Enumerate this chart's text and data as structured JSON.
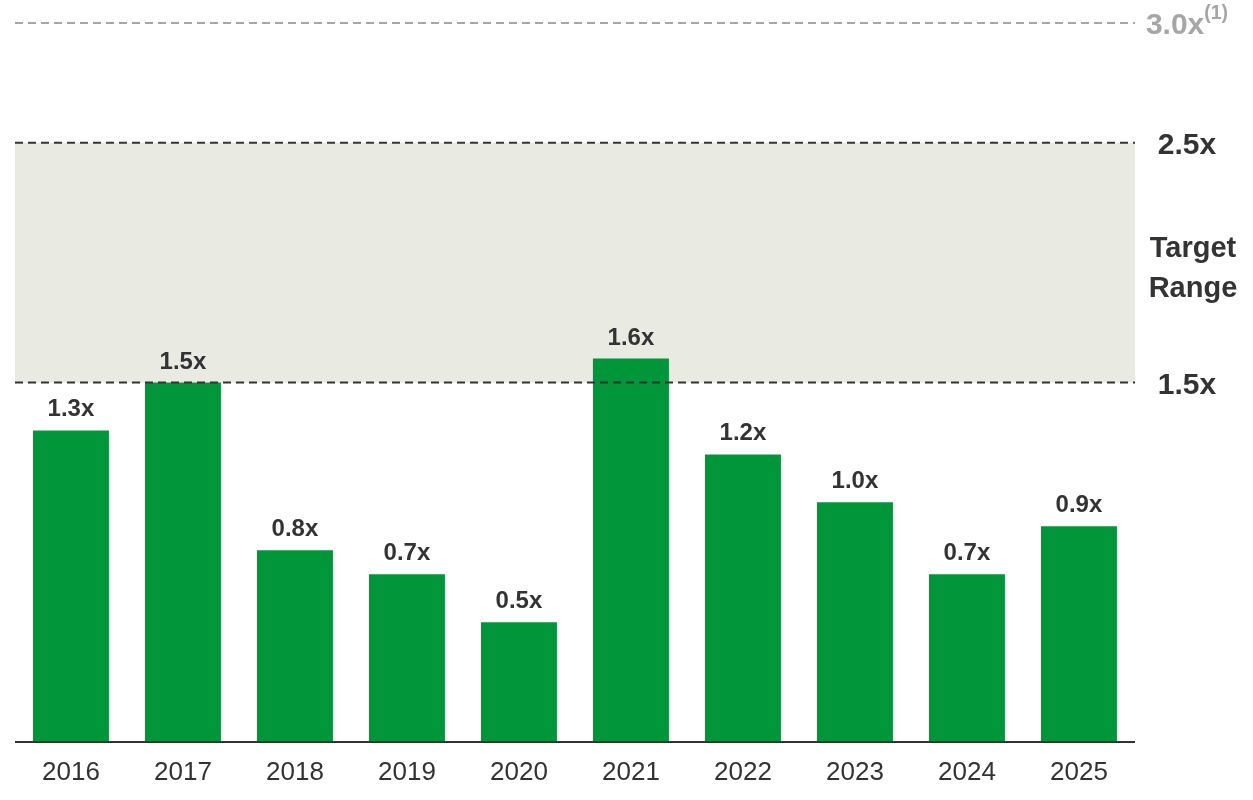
{
  "chart_data": {
    "type": "bar",
    "categories": [
      "2016",
      "2017",
      "2018",
      "2019",
      "2020",
      "2021",
      "2022",
      "2023",
      "2024",
      "2025"
    ],
    "values": [
      1.3,
      1.5,
      0.8,
      0.7,
      0.5,
      1.6,
      1.2,
      1.0,
      0.7,
      0.9
    ],
    "value_labels": [
      "1.3x",
      "1.5x",
      "0.8x",
      "0.7x",
      "0.5x",
      "1.6x",
      "1.2x",
      "1.0x",
      "0.7x",
      "0.9x"
    ],
    "color": "#009639",
    "ylim": [
      0,
      3.0
    ],
    "grid": false,
    "legend": false,
    "bands": [
      {
        "axis": "y",
        "from": 1.5,
        "to": 2.5,
        "label": "Target Range",
        "color": "#e9ebe3"
      }
    ],
    "ref_lines": [
      {
        "axis": "y",
        "value": 1.5,
        "label": "1.5x",
        "color": "#333333",
        "line_style": "dashed"
      },
      {
        "axis": "y",
        "value": 2.5,
        "label": "2.5x",
        "color": "#333333",
        "line_style": "dashed"
      },
      {
        "axis": "y",
        "value": 3.0,
        "label": "3.0x$^{(1)}$",
        "color": "#a6a6a6",
        "line_style": "dashed"
      }
    ]
  }
}
